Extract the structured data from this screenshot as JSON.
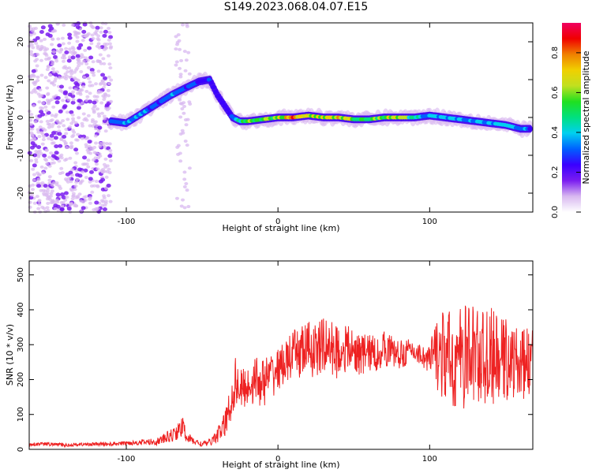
{
  "figure": {
    "title": "S149.2023.068.04.07.E15"
  },
  "chart_data": [
    {
      "type": "heatmap",
      "title": "S149.2023.068.04.07.E15",
      "xlabel": "Height of straight line (km)",
      "ylabel": "Frequency (Hz)",
      "xlim": [
        -164,
        168
      ],
      "ylim": [
        -25,
        25
      ],
      "xticks": [
        -100,
        0,
        100
      ],
      "yticks": [
        -20,
        -10,
        0,
        10,
        20
      ],
      "xtick_labels": [
        "-100",
        "0",
        "100"
      ],
      "ytick_labels": [
        "-20",
        "-10",
        "0",
        "10",
        "20"
      ],
      "colorbar": {
        "label": "Normalized spectral amplitude",
        "range": [
          0.0,
          0.95
        ],
        "ticks": [
          0.0,
          0.2,
          0.4,
          0.6,
          0.8
        ],
        "tick_labels": [
          "0.0",
          "0.2",
          "0.4",
          "0.6",
          "0.8"
        ],
        "colormap": "rainbow",
        "colors": [
          "#ffffff",
          "#d8b8f0",
          "#7a1cf0",
          "#3a00ff",
          "#0060ff",
          "#00d0f0",
          "#00e080",
          "#20e020",
          "#c0e020",
          "#f0d000",
          "#f08000",
          "#f00000",
          "#f00060"
        ]
      },
      "ridge": {
        "x": [
          -110,
          -100,
          -90,
          -80,
          -70,
          -60,
          -52,
          -45,
          -40,
          -35,
          -30,
          -25,
          -20,
          -10,
          0,
          10,
          20,
          30,
          40,
          50,
          60,
          70,
          80,
          90,
          100,
          110,
          120,
          130,
          140,
          150,
          160,
          166
        ],
        "frequency": [
          -1,
          -1.5,
          1,
          3.5,
          6,
          8,
          9.5,
          10,
          6,
          3,
          0,
          -1,
          -1,
          -0.5,
          0,
          0,
          0.5,
          0,
          0,
          -0.5,
          -0.5,
          0,
          0,
          0,
          0.5,
          0,
          -0.5,
          -1,
          -1.5,
          -2,
          -3,
          -3
        ],
        "amplitude": [
          0.3,
          0.35,
          0.35,
          0.3,
          0.35,
          0.3,
          0.25,
          0.3,
          0.25,
          0.25,
          0.3,
          0.5,
          0.55,
          0.6,
          0.6,
          0.85,
          0.7,
          0.6,
          0.75,
          0.6,
          0.55,
          0.6,
          0.65,
          0.45,
          0.35,
          0.4,
          0.35,
          0.35,
          0.35,
          0.4,
          0.35,
          0.3
        ]
      },
      "noise_region": {
        "x_range": [
          -164,
          -110
        ],
        "note": "scattered low-amplitude speckle"
      },
      "grid": false
    },
    {
      "type": "line",
      "title": "",
      "xlabel": "Height of straight line (km)",
      "ylabel": "SNR (10 * v/v)",
      "xlim": [
        -164,
        168
      ],
      "ylim": [
        0,
        540
      ],
      "xticks": [
        -100,
        0,
        100
      ],
      "yticks": [
        0,
        100,
        200,
        300,
        400,
        500
      ],
      "xtick_labels": [
        "-100",
        "0",
        "100"
      ],
      "ytick_labels": [
        "0",
        "100",
        "200",
        "300",
        "400",
        "500"
      ],
      "color": "#ee2222",
      "grid": false,
      "series": [
        {
          "name": "",
          "x": [
            -164,
            -150,
            -140,
            -130,
            -120,
            -110,
            -100,
            -90,
            -80,
            -75,
            -70,
            -65,
            -63,
            -60,
            -55,
            -50,
            -45,
            -40,
            -35,
            -30,
            -28,
            -25,
            -20,
            -15,
            -10,
            -5,
            0,
            5,
            10,
            15,
            20,
            25,
            30,
            35,
            40,
            45,
            50,
            55,
            60,
            65,
            70,
            75,
            80,
            85,
            90,
            95,
            100,
            105,
            110,
            115,
            120,
            125,
            130,
            135,
            140,
            145,
            150,
            155,
            160,
            165,
            168
          ],
          "y": [
            15,
            15,
            12,
            14,
            15,
            15,
            18,
            20,
            22,
            30,
            40,
            55,
            65,
            35,
            22,
            15,
            20,
            40,
            70,
            150,
            200,
            170,
            180,
            200,
            190,
            210,
            230,
            250,
            270,
            280,
            290,
            280,
            300,
            290,
            280,
            290,
            280,
            270,
            280,
            270,
            290,
            280,
            270,
            280,
            280,
            270,
            250,
            280,
            260,
            250,
            260,
            270,
            280,
            260,
            270,
            250,
            260,
            250,
            240,
            250,
            250
          ],
          "spread": [
            5,
            5,
            5,
            5,
            5,
            6,
            6,
            8,
            10,
            15,
            20,
            25,
            30,
            15,
            10,
            8,
            10,
            20,
            40,
            60,
            70,
            60,
            60,
            70,
            70,
            70,
            60,
            60,
            70,
            80,
            80,
            80,
            80,
            80,
            80,
            70,
            60,
            60,
            60,
            50,
            50,
            50,
            40,
            40,
            30,
            30,
            60,
            110,
            140,
            150,
            150,
            150,
            150,
            140,
            140,
            130,
            120,
            110,
            100,
            100,
            100
          ]
        }
      ]
    }
  ]
}
